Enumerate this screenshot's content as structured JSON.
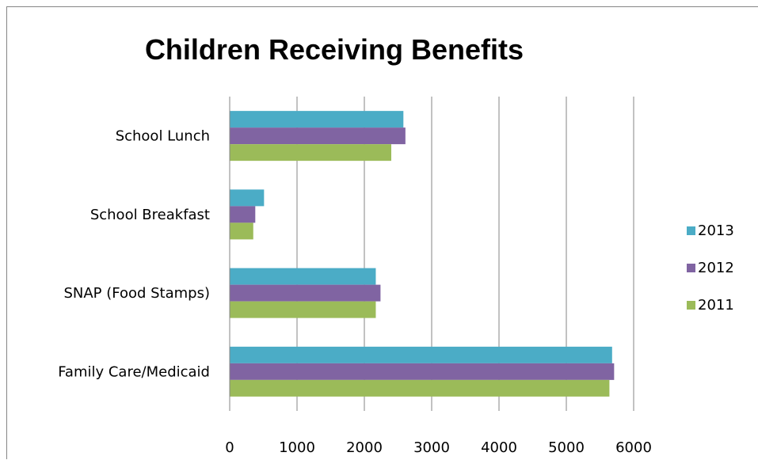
{
  "chart_data": {
    "type": "bar",
    "orientation": "horizontal",
    "title": "Children Receiving Benefits",
    "categories": [
      "School Lunch",
      "School Breakfast",
      "SNAP (Food Stamps)",
      "Family Care/Medicaid"
    ],
    "series": [
      {
        "name": "2013",
        "color": "#4BACC6",
        "values": [
          2580,
          510,
          2170,
          5680
        ]
      },
      {
        "name": "2012",
        "color": "#8064A2",
        "values": [
          2610,
          380,
          2240,
          5710
        ]
      },
      {
        "name": "2011",
        "color": "#9BBB59",
        "values": [
          2400,
          350,
          2170,
          5640
        ]
      }
    ],
    "xlim": [
      0,
      6000
    ],
    "x_ticks": [
      "0",
      "1000",
      "2000",
      "3000",
      "4000",
      "5000",
      "6000"
    ],
    "grid": "vertical",
    "legend_position": "right"
  }
}
